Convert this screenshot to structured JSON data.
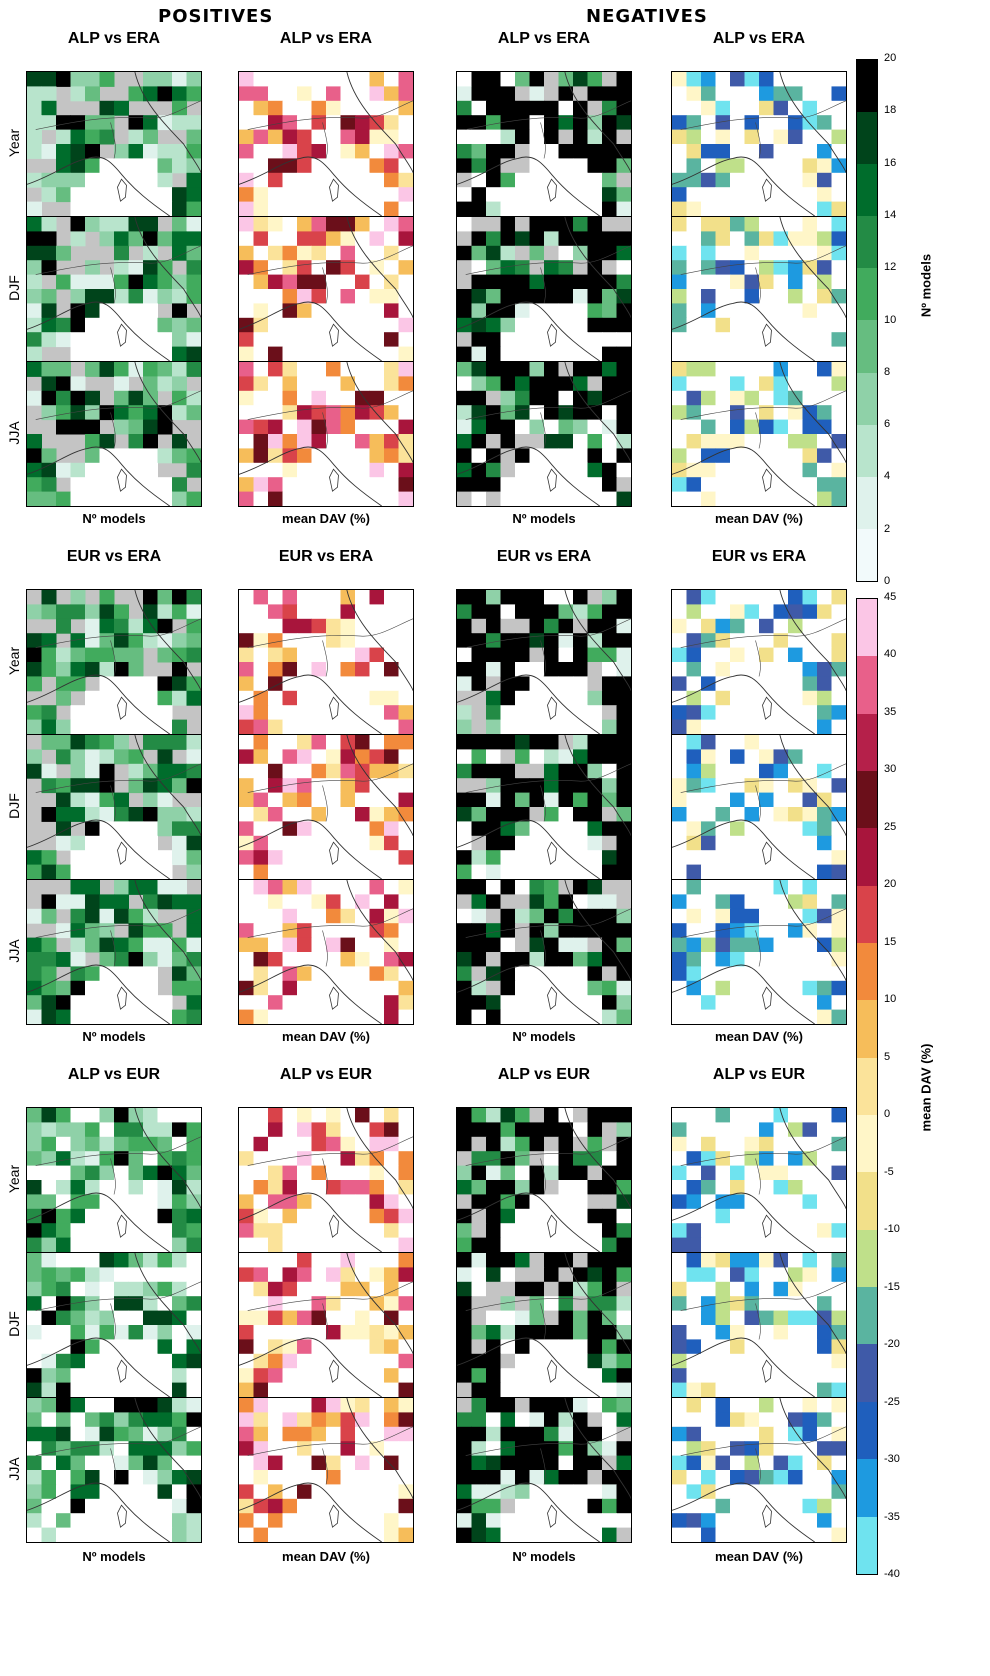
{
  "headers": {
    "positives": "POSITIVES",
    "negatives": "NEGATIVES"
  },
  "groups": [
    {
      "titles": [
        "ALP vs ERA",
        "ALP vs ERA",
        "ALP vs ERA",
        "ALP vs ERA"
      ]
    },
    {
      "titles": [
        "EUR vs ERA",
        "EUR vs ERA",
        "EUR vs ERA",
        "EUR vs ERA"
      ]
    },
    {
      "titles": [
        "ALP vs EUR",
        "ALP vs EUR",
        "ALP vs EUR",
        "ALP vs EUR"
      ]
    }
  ],
  "column_captions": [
    "Nº models",
    "mean DAV (%)",
    "Nº models",
    "mean DAV (%)"
  ],
  "row_labels": [
    "Year",
    "DJF",
    "JJA"
  ],
  "colorbar_models": {
    "title": "Nº models",
    "ticks": [
      "20",
      "18",
      "16",
      "14",
      "12",
      "10",
      "8",
      "6",
      "4",
      "2",
      "0"
    ],
    "colors": [
      "#000000",
      "#00441b",
      "#006d2c",
      "#238b45",
      "#41ab5d",
      "#66bd80",
      "#8fd1a8",
      "#b8e4cc",
      "#dff2ec",
      "#f2fafb"
    ]
  },
  "colorbar_dav": {
    "title": "mean DAV (%)",
    "ticks": [
      "45",
      "40",
      "35",
      "30",
      "25",
      "20",
      "15",
      "10",
      "5",
      "0",
      "-5",
      "-10",
      "-15",
      "-20",
      "-25",
      "-30",
      "-35",
      "-40"
    ],
    "colors": [
      "#fbc6e6",
      "#e8608a",
      "#b5204a",
      "#6b0f1a",
      "#a8153c",
      "#d9434a",
      "#f28a3c",
      "#f6bd5a",
      "#fbe39a",
      "#fff6c8",
      "#f2e08a",
      "#bfe08a",
      "#5ab4a0",
      "#3f5aa8",
      "#1f5fbd",
      "#1e9ae0",
      "#6fe3ef"
    ]
  }
}
